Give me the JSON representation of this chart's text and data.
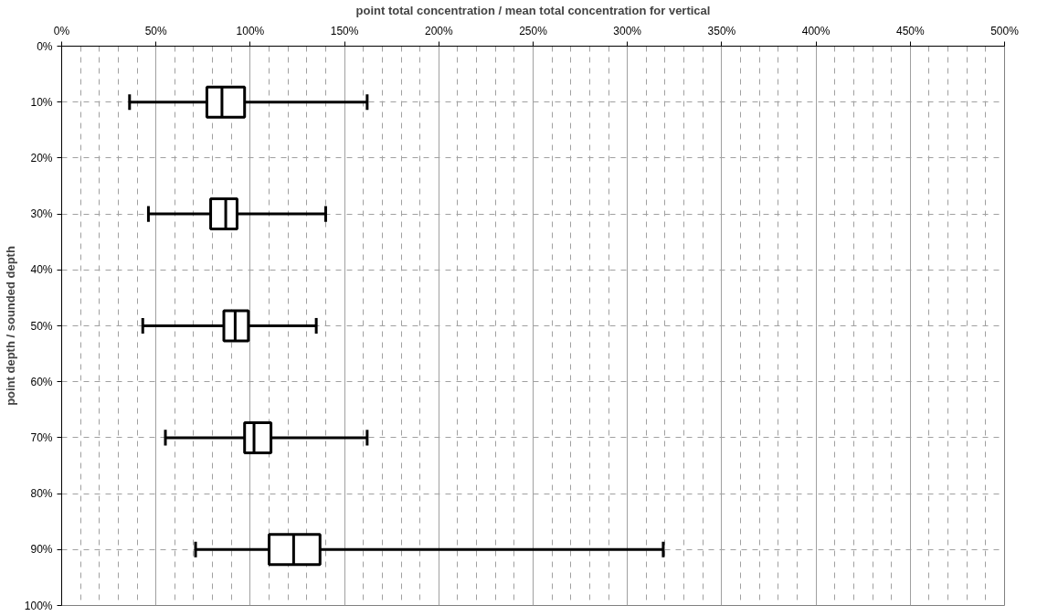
{
  "chart_data": {
    "type": "box",
    "orientation": "horizontal",
    "xlabel": "point total concentration / mean total concentration for vertical",
    "ylabel": "point depth / sounded depth",
    "x": [
      10,
      30,
      50,
      70,
      90
    ],
    "boxes": [
      {
        "low": 36,
        "q1": 77,
        "median": 85,
        "q3": 97,
        "high": 162
      },
      {
        "low": 46,
        "q1": 79,
        "median": 87,
        "q3": 93,
        "high": 140
      },
      {
        "low": 43,
        "q1": 86,
        "median": 92,
        "q3": 99,
        "high": 135
      },
      {
        "low": 55,
        "q1": 97,
        "median": 102,
        "q3": 111,
        "high": 162
      },
      {
        "low": 71,
        "q1": 110,
        "median": 123,
        "q3": 137,
        "high": 319
      }
    ],
    "color": "#000000",
    "xlim": [
      0,
      500
    ],
    "xticks": [
      {
        "value": 0,
        "label": "0%"
      },
      {
        "value": 50,
        "label": "50%"
      },
      {
        "value": 100,
        "label": "100%"
      },
      {
        "value": 150,
        "label": "150%"
      },
      {
        "value": 200,
        "label": "200%"
      },
      {
        "value": 250,
        "label": "250%"
      },
      {
        "value": 300,
        "label": "300%"
      },
      {
        "value": 350,
        "label": "350%"
      },
      {
        "value": 400,
        "label": "400%"
      },
      {
        "value": 450,
        "label": "450%"
      },
      {
        "value": 500,
        "label": "500%"
      }
    ],
    "ylim": [
      100,
      0
    ],
    "yticks": [
      {
        "value": 0,
        "label": "0%"
      },
      {
        "value": 10,
        "label": "10%"
      },
      {
        "value": 20,
        "label": "20%"
      },
      {
        "value": 30,
        "label": "30%"
      },
      {
        "value": 40,
        "label": "40%"
      },
      {
        "value": 50,
        "label": "50%"
      },
      {
        "value": 60,
        "label": "60%"
      },
      {
        "value": 70,
        "label": "70%"
      },
      {
        "value": 80,
        "label": "80%"
      },
      {
        "value": 90,
        "label": "90%"
      },
      {
        "value": 100,
        "label": "100%"
      }
    ],
    "grid": true
  }
}
